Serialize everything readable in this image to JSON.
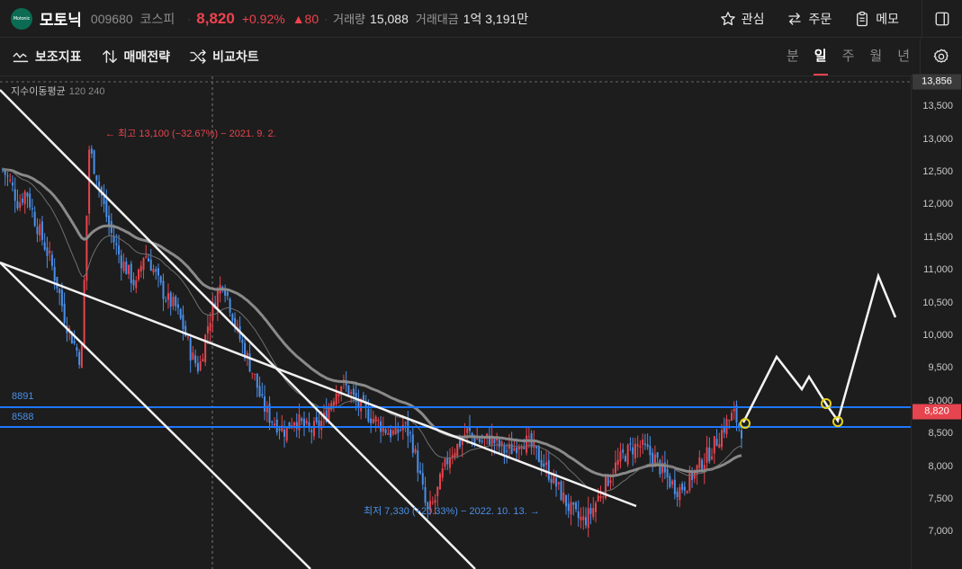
{
  "header": {
    "logo_text": "Motonic",
    "stock_name": "모토닉",
    "code": "009680",
    "market": "코스피",
    "price": "8,820",
    "change_pct": "+0.92%",
    "change_abs": "▲80",
    "volume_label": "거래량",
    "volume": "15,088",
    "amount_label": "거래대금",
    "amount": "1억 3,191만",
    "actions": {
      "watch": "관심",
      "order": "주문",
      "memo": "메모"
    }
  },
  "toolbar": {
    "indicators": "보조지표",
    "strategy": "매매전략",
    "compare": "비교차트",
    "periods": [
      "분",
      "일",
      "주",
      "월",
      "년"
    ],
    "active_period": "일"
  },
  "chart": {
    "legend_name": "지수이동평균",
    "legend_periods": "120 240",
    "high_annotation": "← 최고 13,100 (−32.67%) − 2021. 9. 2.",
    "low_annotation": "최저 7,330 (+20.33%) − 2022. 10. 13. →",
    "level_high_label": "8891",
    "level_low_label": "8588",
    "top_tag": "13,856",
    "price_tag": "8,820",
    "y_ticks": [
      "13,500",
      "13,000",
      "12,500",
      "12,000",
      "11,500",
      "11,000",
      "10,500",
      "10,000",
      "9,500",
      "9,000",
      "8,500",
      "8,000",
      "7,500",
      "7,000"
    ],
    "colors": {
      "up": "#e6444e",
      "down": "#4a8fe8",
      "level": "#1e78ff",
      "ma_long": "#8a8a8a",
      "ma_short": "#6f6f6f"
    }
  },
  "chart_data": {
    "type": "candlestick",
    "y_range": [
      6800,
      13950
    ],
    "horizontal_levels": [
      8891,
      8588
    ],
    "high": {
      "value": 13100,
      "date": "2021. 9. 2."
    },
    "low": {
      "value": 7330,
      "date": "2022. 10. 13."
    },
    "last_price": 8820,
    "approx_close_path": [
      12600,
      12400,
      12100,
      12300,
      11900,
      11600,
      11300,
      10900,
      10400,
      10100,
      9800,
      12900,
      12500,
      12000,
      11600,
      11300,
      11100,
      10900,
      11400,
      11200,
      10900,
      10700,
      10600,
      10300,
      9900,
      9700,
      10300,
      10700,
      11000,
      10600,
      10200,
      9900,
      9600,
      9200,
      9000,
      8900,
      8800,
      9000,
      8900,
      8800,
      8850,
      9000,
      9300,
      9500,
      9400,
      9200,
      9100,
      9000,
      8900,
      8800,
      8750,
      8900,
      8700,
      8200,
      7600,
      7800,
      8200,
      8500,
      8600,
      8800,
      8700,
      8650,
      8700,
      8600,
      8500,
      8550,
      8700,
      8600,
      8450,
      8300,
      8100,
      7900,
      7700,
      7550,
      7500,
      7650,
      7900,
      8100,
      8300,
      8450,
      8550,
      8600,
      8500,
      8400,
      8200,
      8050,
      7950,
      8050,
      8200,
      8350,
      8500,
      8700,
      8900,
      9050,
      8820
    ]
  }
}
